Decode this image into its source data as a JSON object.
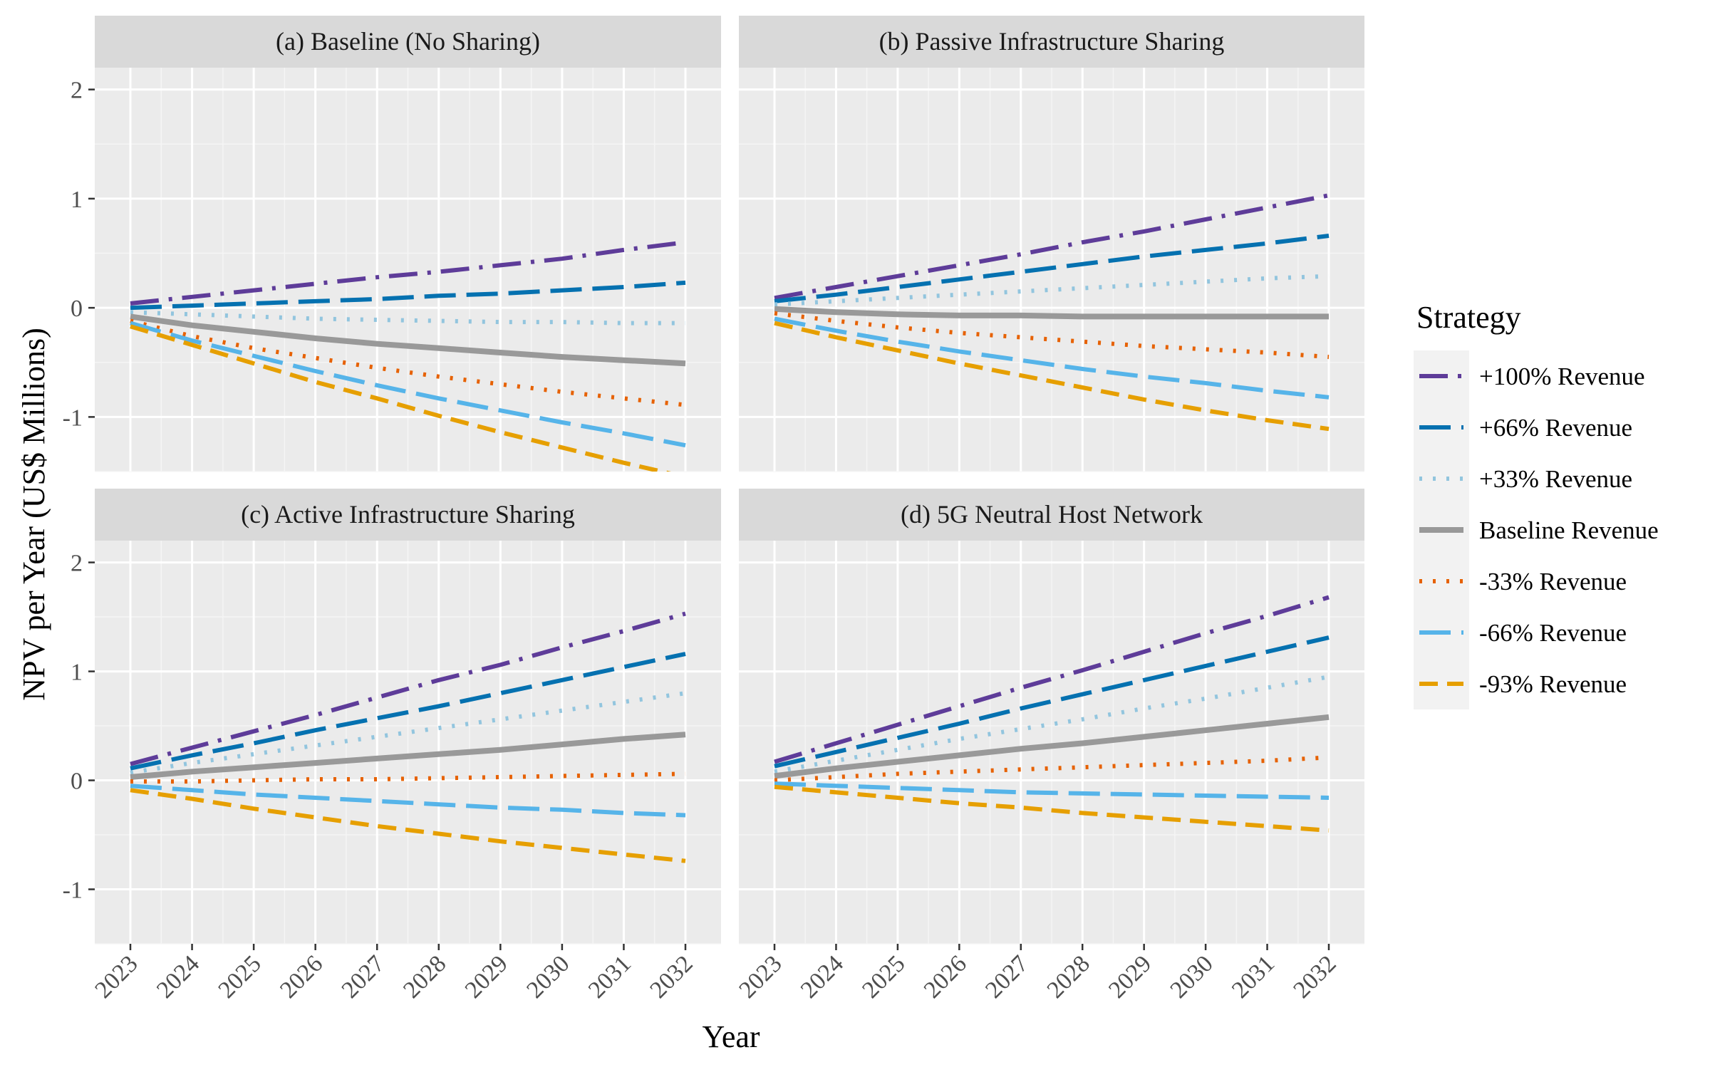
{
  "chart_data": {
    "type": "line",
    "title": "",
    "xlabel": "Year",
    "ylabel": "NPV per Year (US$ Millions)",
    "x": [
      2023,
      2024,
      2025,
      2026,
      2027,
      2028,
      2029,
      2030,
      2031,
      2032
    ],
    "ylim": [
      -1.5,
      2.2
    ],
    "yticks": [
      -1,
      0,
      1,
      2
    ],
    "ytick_labels": [
      "-1",
      "0",
      "1",
      "2"
    ],
    "grid": true,
    "legend": {
      "title": "Strategy",
      "position": "right",
      "entries": [
        "+100% Revenue",
        "+66% Revenue",
        "+33% Revenue",
        "Baseline Revenue",
        "-33% Revenue",
        "-66% Revenue",
        "-93% Revenue"
      ]
    },
    "series_styles": [
      {
        "name": "+100% Revenue",
        "color": "#5e3c99",
        "dash": "longdash-dot"
      },
      {
        "name": "+66% Revenue",
        "color": "#0571b0",
        "dash": "longdash"
      },
      {
        "name": "+33% Revenue",
        "color": "#92c5de",
        "dash": "dotted"
      },
      {
        "name": "Baseline Revenue",
        "color": "#999999",
        "dash": "solid"
      },
      {
        "name": "-33% Revenue",
        "color": "#e66101",
        "dash": "dotted"
      },
      {
        "name": "-66% Revenue",
        "color": "#56b4e9",
        "dash": "longdash"
      },
      {
        "name": "-93% Revenue",
        "color": "#e69f00",
        "dash": "dashed"
      }
    ],
    "panels": [
      {
        "title": "(a) Baseline (No Sharing)",
        "series": [
          {
            "name": "+100% Revenue",
            "values": [
              0.04,
              0.1,
              0.16,
              0.22,
              0.28,
              0.33,
              0.39,
              0.45,
              0.53,
              0.6
            ]
          },
          {
            "name": "+66% Revenue",
            "values": [
              0.0,
              0.02,
              0.04,
              0.06,
              0.08,
              0.11,
              0.13,
              0.16,
              0.19,
              0.23
            ]
          },
          {
            "name": "+33% Revenue",
            "values": [
              -0.04,
              -0.06,
              -0.08,
              -0.1,
              -0.11,
              -0.12,
              -0.13,
              -0.13,
              -0.14,
              -0.14
            ]
          },
          {
            "name": "Baseline Revenue",
            "values": [
              -0.08,
              -0.16,
              -0.22,
              -0.28,
              -0.33,
              -0.37,
              -0.41,
              -0.45,
              -0.48,
              -0.51
            ]
          },
          {
            "name": "-33% Revenue",
            "values": [
              -0.12,
              -0.26,
              -0.37,
              -0.46,
              -0.55,
              -0.63,
              -0.7,
              -0.77,
              -0.83,
              -0.89
            ]
          },
          {
            "name": "-66% Revenue",
            "values": [
              -0.14,
              -0.3,
              -0.44,
              -0.58,
              -0.71,
              -0.83,
              -0.94,
              -1.05,
              -1.15,
              -1.26
            ]
          },
          {
            "name": "-93% Revenue",
            "values": [
              -0.17,
              -0.34,
              -0.51,
              -0.68,
              -0.83,
              -0.99,
              -1.14,
              -1.28,
              -1.42,
              -1.55
            ]
          }
        ]
      },
      {
        "title": "(b) Passive Infrastructure Sharing",
        "series": [
          {
            "name": "+100% Revenue",
            "values": [
              0.09,
              0.19,
              0.29,
              0.39,
              0.49,
              0.6,
              0.7,
              0.81,
              0.92,
              1.03
            ]
          },
          {
            "name": "+66% Revenue",
            "values": [
              0.06,
              0.12,
              0.19,
              0.26,
              0.33,
              0.4,
              0.47,
              0.53,
              0.59,
              0.66
            ]
          },
          {
            "name": "+33% Revenue",
            "values": [
              0.03,
              0.06,
              0.09,
              0.12,
              0.15,
              0.18,
              0.21,
              0.24,
              0.27,
              0.29
            ]
          },
          {
            "name": "Baseline Revenue",
            "values": [
              -0.01,
              -0.04,
              -0.06,
              -0.07,
              -0.07,
              -0.08,
              -0.08,
              -0.08,
              -0.08,
              -0.08
            ]
          },
          {
            "name": "-33% Revenue",
            "values": [
              -0.05,
              -0.12,
              -0.18,
              -0.23,
              -0.27,
              -0.31,
              -0.35,
              -0.38,
              -0.41,
              -0.45
            ]
          },
          {
            "name": "-66% Revenue",
            "values": [
              -0.1,
              -0.21,
              -0.31,
              -0.4,
              -0.48,
              -0.56,
              -0.63,
              -0.69,
              -0.76,
              -0.82
            ]
          },
          {
            "name": "-93% Revenue",
            "values": [
              -0.14,
              -0.27,
              -0.39,
              -0.51,
              -0.62,
              -0.73,
              -0.84,
              -0.94,
              -1.03,
              -1.11
            ]
          }
        ]
      },
      {
        "title": "(c) Active Infrastructure Sharing",
        "series": [
          {
            "name": "+100% Revenue",
            "values": [
              0.15,
              0.3,
              0.45,
              0.6,
              0.76,
              0.92,
              1.06,
              1.22,
              1.37,
              1.53
            ]
          },
          {
            "name": "+66% Revenue",
            "values": [
              0.11,
              0.23,
              0.34,
              0.46,
              0.57,
              0.68,
              0.8,
              0.92,
              1.04,
              1.16
            ]
          },
          {
            "name": "+33% Revenue",
            "values": [
              0.07,
              0.16,
              0.24,
              0.32,
              0.4,
              0.48,
              0.56,
              0.64,
              0.72,
              0.8
            ]
          },
          {
            "name": "Baseline Revenue",
            "values": [
              0.03,
              0.08,
              0.12,
              0.16,
              0.2,
              0.24,
              0.28,
              0.33,
              0.38,
              0.42
            ]
          },
          {
            "name": "-33% Revenue",
            "values": [
              -0.01,
              -0.01,
              0.0,
              0.01,
              0.01,
              0.02,
              0.03,
              0.04,
              0.05,
              0.06
            ]
          },
          {
            "name": "-66% Revenue",
            "values": [
              -0.05,
              -0.09,
              -0.13,
              -0.16,
              -0.19,
              -0.22,
              -0.25,
              -0.27,
              -0.3,
              -0.32
            ]
          },
          {
            "name": "-93% Revenue",
            "values": [
              -0.09,
              -0.17,
              -0.26,
              -0.34,
              -0.42,
              -0.49,
              -0.56,
              -0.62,
              -0.68,
              -0.74
            ]
          }
        ]
      },
      {
        "title": "(d) 5G Neutral Host Network",
        "series": [
          {
            "name": "+100% Revenue",
            "values": [
              0.17,
              0.34,
              0.51,
              0.68,
              0.85,
              1.01,
              1.18,
              1.35,
              1.51,
              1.68
            ]
          },
          {
            "name": "+66% Revenue",
            "values": [
              0.13,
              0.26,
              0.39,
              0.52,
              0.66,
              0.79,
              0.92,
              1.05,
              1.18,
              1.31
            ]
          },
          {
            "name": "+33% Revenue",
            "values": [
              0.08,
              0.18,
              0.28,
              0.38,
              0.47,
              0.56,
              0.66,
              0.75,
              0.85,
              0.95
            ]
          },
          {
            "name": "Baseline Revenue",
            "values": [
              0.04,
              0.11,
              0.17,
              0.23,
              0.29,
              0.34,
              0.4,
              0.46,
              0.52,
              0.58
            ]
          },
          {
            "name": "-33% Revenue",
            "values": [
              0.0,
              0.03,
              0.06,
              0.08,
              0.1,
              0.12,
              0.14,
              0.16,
              0.18,
              0.21
            ]
          },
          {
            "name": "-66% Revenue",
            "values": [
              -0.03,
              -0.05,
              -0.07,
              -0.09,
              -0.11,
              -0.12,
              -0.13,
              -0.14,
              -0.15,
              -0.16
            ]
          },
          {
            "name": "-93% Revenue",
            "values": [
              -0.06,
              -0.11,
              -0.16,
              -0.21,
              -0.25,
              -0.3,
              -0.34,
              -0.38,
              -0.42,
              -0.46
            ]
          }
        ]
      }
    ]
  }
}
